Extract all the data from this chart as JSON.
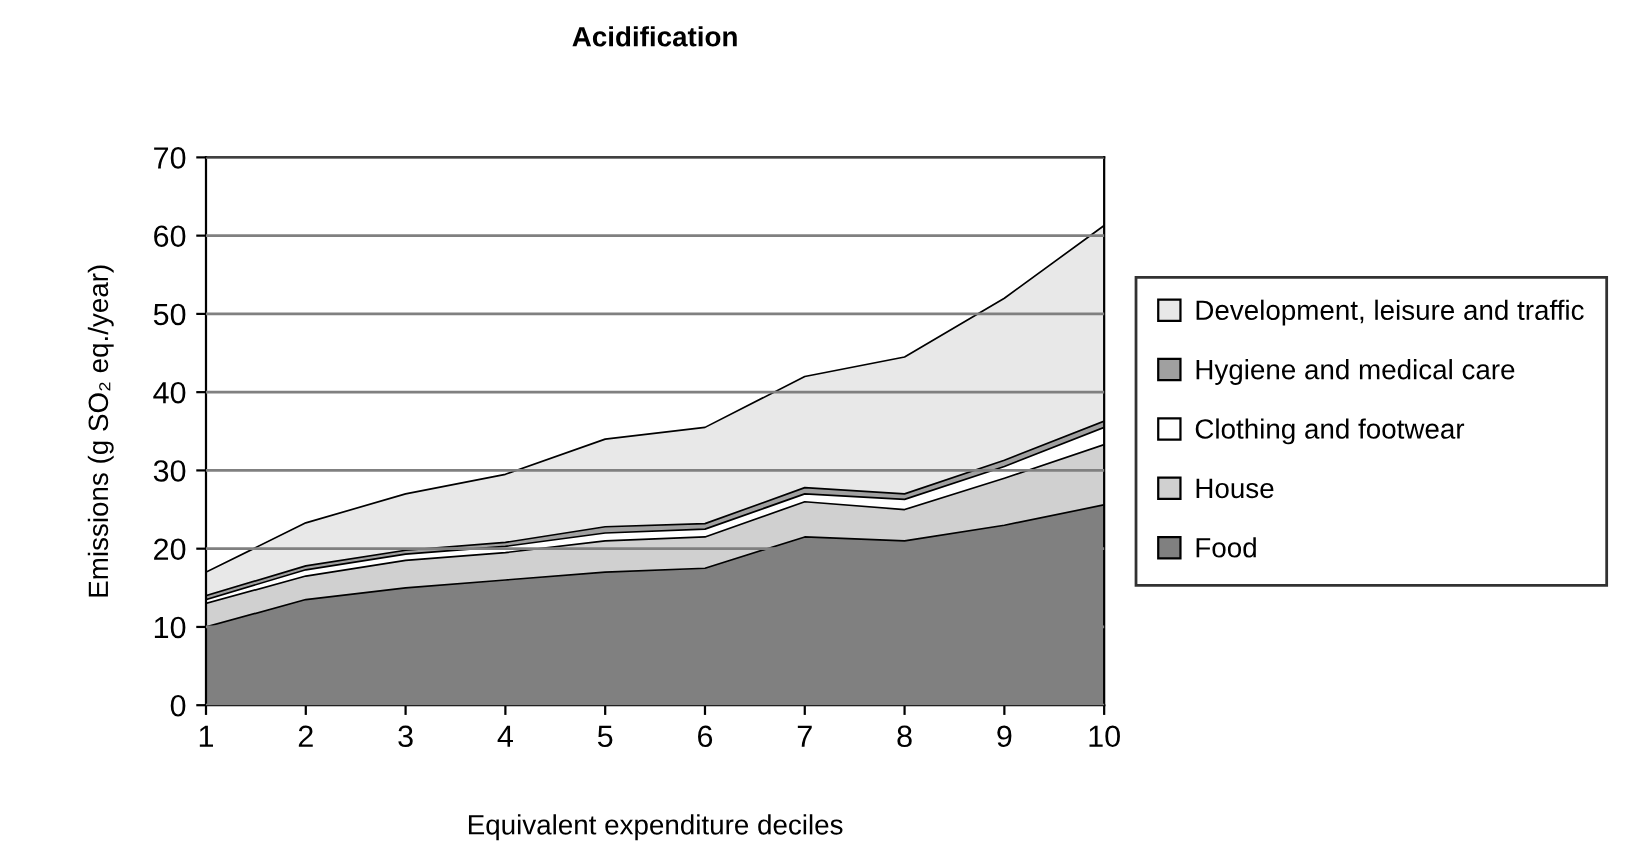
{
  "chart_data": {
    "type": "area",
    "stacked": true,
    "title": "Acidification",
    "xlabel": "Equivalent expenditure deciles",
    "ylabel": "Emissions (g SO₂ eq./year)",
    "x": [
      1,
      2,
      3,
      4,
      5,
      6,
      7,
      8,
      9,
      10
    ],
    "series": [
      {
        "name": "Food",
        "color": "#808080",
        "values": [
          10,
          13.5,
          15,
          16,
          17,
          17.5,
          21.5,
          21,
          23,
          25.6
        ]
      },
      {
        "name": "House",
        "color": "#d0d0d0",
        "values": [
          3,
          3,
          3.5,
          3.5,
          4,
          4,
          4.5,
          4,
          6,
          7.7
        ]
      },
      {
        "name": "Clothing and footwear",
        "color": "#ffffff",
        "values": [
          0.5,
          0.8,
          0.8,
          0.8,
          1,
          1,
          1,
          1.3,
          1.5,
          2.2
        ]
      },
      {
        "name": "Hygiene and medical care",
        "color": "#a0a0a0",
        "values": [
          0.5,
          0.5,
          0.5,
          0.5,
          0.8,
          0.7,
          0.8,
          0.7,
          0.8,
          0.8
        ]
      },
      {
        "name": "Development, leisure and traffic",
        "color": "#e8e8e8",
        "values": [
          3,
          5.5,
          7.2,
          8.7,
          11.2,
          12.3,
          14.2,
          17.5,
          20.7,
          25
        ]
      }
    ],
    "xlim": [
      1,
      10
    ],
    "xticks": [
      1,
      2,
      3,
      4,
      5,
      6,
      7,
      8,
      9,
      10
    ],
    "ylim": [
      0,
      70
    ],
    "yticks": [
      0,
      10,
      20,
      30,
      40,
      50,
      60,
      70
    ],
    "grid": "y",
    "legend": "right"
  }
}
